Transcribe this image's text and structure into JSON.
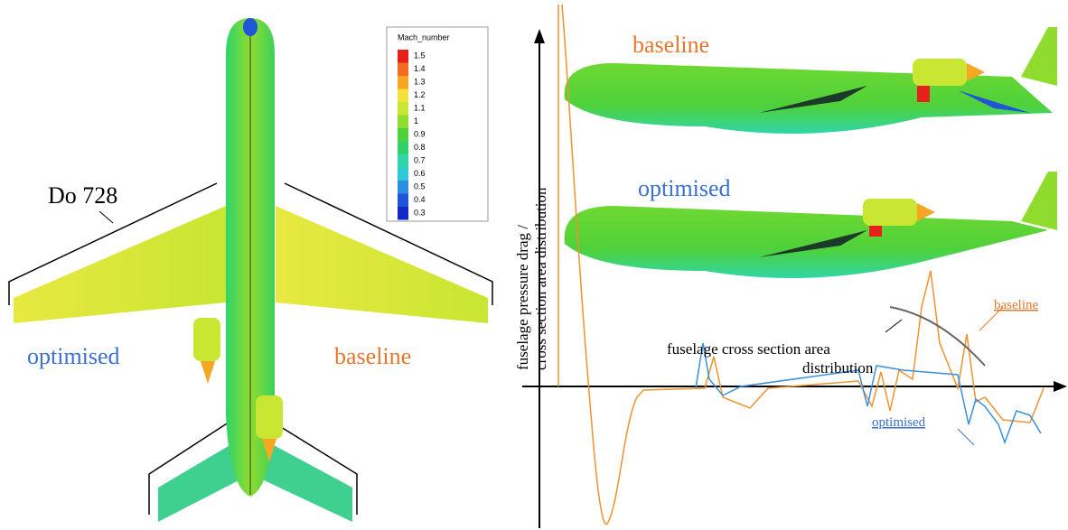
{
  "left_panel": {
    "annotation": "Do 728",
    "label_left": "optimised",
    "label_right": "baseline",
    "colorbar": {
      "title": "Mach_number",
      "levels": [
        1.5,
        1.4,
        1.3,
        1.2,
        1.1,
        1,
        0.9,
        0.8,
        0.7,
        0.6,
        0.5,
        0.4,
        0.3
      ],
      "colors": [
        "#e8201c",
        "#f26b1e",
        "#f5a623",
        "#f2e23a",
        "#c8e632",
        "#8fdc2e",
        "#4fd13a",
        "#2fd16a",
        "#2fd6a6",
        "#30c8d8",
        "#2a8fe0",
        "#1f55d8",
        "#1428c8"
      ]
    }
  },
  "right_panel": {
    "y_axis_label": [
      "fuselage pressure drag /",
      "cross section area distribution"
    ],
    "top_label": "baseline",
    "bottom_label": "optimised",
    "curve_annotation": [
      "fuselage cross section area",
      "distribution"
    ],
    "curve_label_baseline": "baseline",
    "curve_label_optimised": "optimised"
  }
}
